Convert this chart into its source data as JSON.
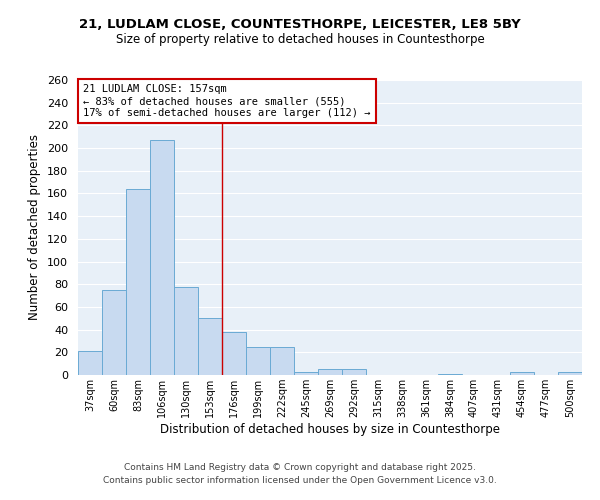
{
  "title1": "21, LUDLAM CLOSE, COUNTESTHORPE, LEICESTER, LE8 5BY",
  "title2": "Size of property relative to detached houses in Countesthorpe",
  "xlabel": "Distribution of detached houses by size in Countesthorpe",
  "ylabel": "Number of detached properties",
  "bar_labels": [
    "37sqm",
    "60sqm",
    "83sqm",
    "106sqm",
    "130sqm",
    "153sqm",
    "176sqm",
    "199sqm",
    "222sqm",
    "245sqm",
    "269sqm",
    "292sqm",
    "315sqm",
    "338sqm",
    "361sqm",
    "384sqm",
    "407sqm",
    "431sqm",
    "454sqm",
    "477sqm",
    "500sqm"
  ],
  "bar_values": [
    21,
    75,
    164,
    207,
    78,
    50,
    38,
    25,
    25,
    3,
    5,
    5,
    0,
    0,
    0,
    1,
    0,
    0,
    3,
    0,
    3
  ],
  "bar_color": "#c8daf0",
  "bar_edge_color": "#6aaad4",
  "vline_x": 5.5,
  "vline_color": "#cc0000",
  "annotation_text": "21 LUDLAM CLOSE: 157sqm\n← 83% of detached houses are smaller (555)\n17% of semi-detached houses are larger (112) →",
  "annotation_box_color": "white",
  "annotation_box_edge": "#cc0000",
  "ylim": [
    0,
    260
  ],
  "yticks": [
    0,
    20,
    40,
    60,
    80,
    100,
    120,
    140,
    160,
    180,
    200,
    220,
    240,
    260
  ],
  "bg_color": "#e8f0f8",
  "grid_color": "white",
  "footer1": "Contains HM Land Registry data © Crown copyright and database right 2025.",
  "footer2": "Contains public sector information licensed under the Open Government Licence v3.0."
}
